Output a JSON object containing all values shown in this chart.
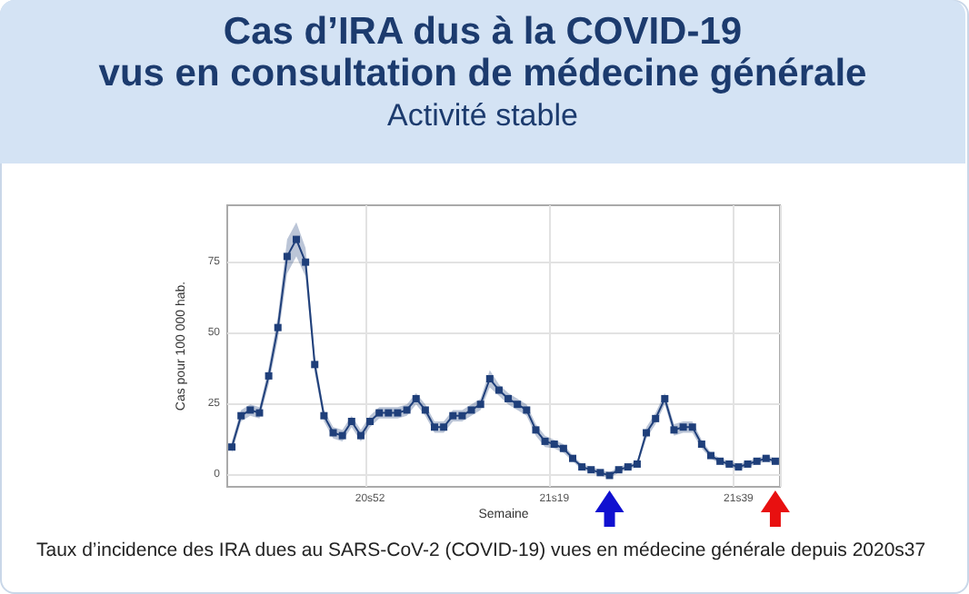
{
  "chart_data": {
    "type": "line",
    "title": "Cas d’IRA dus à la COVID-19\nvus en consultation de médecine générale",
    "subtitle": "Activité stable",
    "xlabel": "Semaine",
    "ylabel": "Cas pour 100 000 hab.",
    "annotations": [
      "Taux d’incidence des IRA dues au SARS-CoV-2 (COVID-19)  vues en médecine générale depuis 2020s37"
    ],
    "categories": [
      null,
      null,
      null,
      null,
      null,
      null,
      null,
      null,
      null,
      null,
      null,
      null,
      null,
      null,
      null,
      "20s52",
      null,
      null,
      null,
      null,
      null,
      null,
      null,
      null,
      null,
      null,
      null,
      null,
      null,
      null,
      null,
      null,
      null,
      null,
      null,
      "21s19",
      null,
      null,
      null,
      null,
      null,
      null,
      null,
      null,
      null,
      null,
      null,
      null,
      null,
      null,
      null,
      null,
      null,
      null,
      null,
      "21s39",
      null,
      null,
      null,
      null
    ],
    "series": [
      {
        "color": "#1f3f7a",
        "values": [
          10,
          21,
          23,
          22,
          35,
          52,
          77,
          83,
          75,
          39,
          21,
          15,
          14,
          19,
          14,
          19,
          22,
          22,
          22,
          23,
          27,
          23,
          17,
          17,
          21,
          21,
          23,
          25,
          34,
          30,
          27,
          25,
          23,
          16,
          12,
          11,
          9.5,
          6,
          3,
          2,
          1,
          0,
          2,
          3,
          4,
          15,
          20,
          27,
          16,
          17,
          17,
          11,
          7,
          5,
          4,
          3,
          4,
          5,
          6,
          5
        ],
        "lower": [
          8,
          19,
          21,
          20,
          32,
          48,
          71,
          77,
          70,
          36,
          19,
          13,
          12,
          17,
          12,
          17,
          20,
          20,
          20,
          21,
          25,
          21,
          15,
          15,
          19,
          19,
          21,
          23,
          31,
          28,
          25,
          23,
          21,
          14,
          10,
          9.5,
          8,
          5,
          2,
          1,
          0,
          -1,
          1,
          2,
          3,
          13,
          18,
          25,
          14,
          15,
          15,
          9.5,
          6,
          4,
          3,
          2,
          3,
          4,
          5,
          4
        ],
        "upper": [
          12,
          23,
          25,
          24,
          38,
          56,
          83,
          89,
          80,
          42,
          23,
          17,
          16,
          21,
          16,
          21,
          24,
          24,
          24,
          25,
          29,
          25,
          19,
          19,
          23,
          23,
          25,
          27,
          37,
          32,
          29,
          27,
          25,
          18,
          14,
          12.5,
          11,
          7,
          4,
          3,
          2,
          1,
          3,
          4,
          5,
          17,
          22,
          29,
          18,
          19,
          19,
          12.5,
          8,
          6,
          5,
          4,
          5,
          6,
          7,
          6
        ]
      }
    ],
    "marker": "square",
    "line_style": "solid",
    "grid": true,
    "ylim": [
      -4,
      95
    ],
    "yticks": [
      0,
      25,
      50,
      75
    ]
  }
}
